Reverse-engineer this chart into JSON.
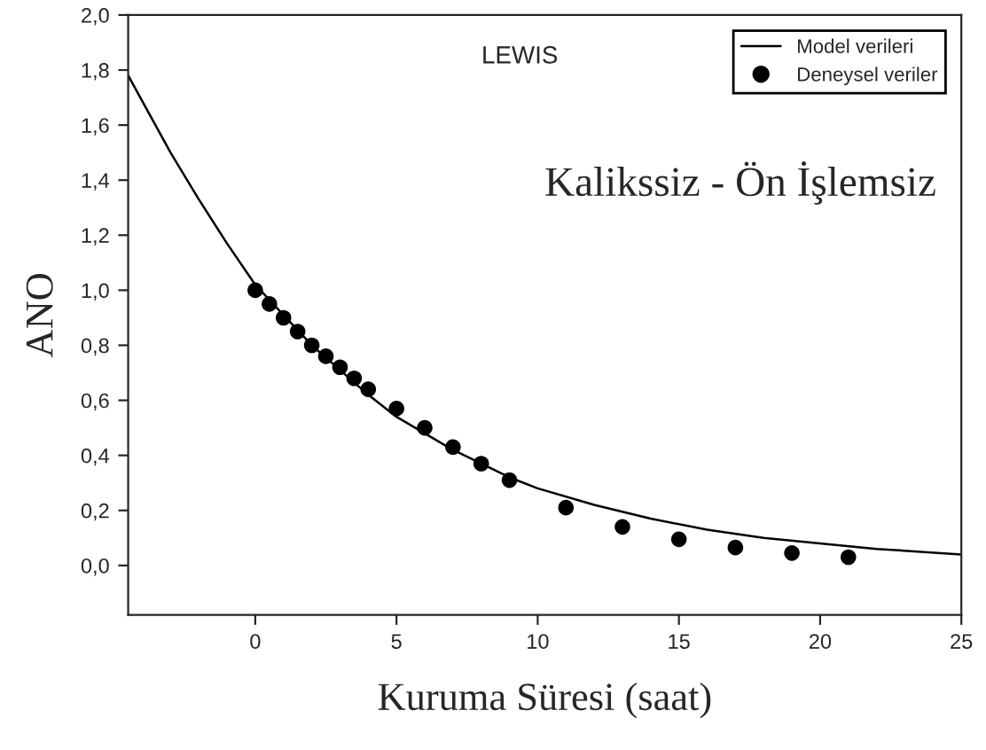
{
  "chart_data": {
    "type": "scatter",
    "xlabel": "Kuruma Süresi (saat)",
    "ylabel": "ANO",
    "annotations": [
      "LEWIS",
      "Kalikssiz - Ön İşlemsiz"
    ],
    "xlim": [
      -4.5,
      25
    ],
    "xticks": [
      0,
      5,
      10,
      15,
      20,
      25
    ],
    "ylim": [
      -0.18,
      2.0
    ],
    "yticks": [
      {
        "value": 0.0,
        "label": "0,0"
      },
      {
        "value": 0.2,
        "label": "0,2"
      },
      {
        "value": 0.4,
        "label": "0,4"
      },
      {
        "value": 0.6,
        "label": "0,6"
      },
      {
        "value": 0.8,
        "label": "0,8"
      },
      {
        "value": 1.0,
        "label": "1,0"
      },
      {
        "value": 1.2,
        "label": "1,2"
      },
      {
        "value": 1.4,
        "label": "1,4"
      },
      {
        "value": 1.6,
        "label": "1,6"
      },
      {
        "value": 1.8,
        "label": "1,8"
      },
      {
        "value": 2.0,
        "label": "2,0"
      }
    ],
    "grid": false,
    "legend": "top right",
    "series": [
      {
        "name": "Model verileri",
        "type": "line",
        "color": "#000000",
        "line_style": "solid",
        "marker": "none",
        "x": [
          -4.5,
          -3,
          -2,
          -1,
          0,
          1,
          2,
          3,
          4,
          5,
          6,
          7,
          8,
          9,
          10,
          12,
          14,
          16,
          18,
          20,
          22,
          25
        ],
        "values": [
          1.78,
          1.5,
          1.33,
          1.17,
          1.02,
          0.91,
          0.8,
          0.71,
          0.62,
          0.54,
          0.48,
          0.42,
          0.37,
          0.32,
          0.28,
          0.22,
          0.17,
          0.13,
          0.1,
          0.08,
          0.06,
          0.04
        ]
      },
      {
        "name": "Deneysel veriler",
        "color": "#000000",
        "marker": "circle",
        "x": [
          0,
          0.5,
          1,
          1.5,
          2,
          2.5,
          3,
          3.5,
          4,
          5,
          6,
          7,
          8,
          9,
          11,
          13,
          15,
          17,
          19,
          21
        ],
        "values": [
          1.0,
          0.95,
          0.9,
          0.85,
          0.8,
          0.76,
          0.72,
          0.68,
          0.64,
          0.57,
          0.5,
          0.43,
          0.37,
          0.31,
          0.21,
          0.14,
          0.095,
          0.065,
          0.045,
          0.03
        ]
      }
    ]
  }
}
